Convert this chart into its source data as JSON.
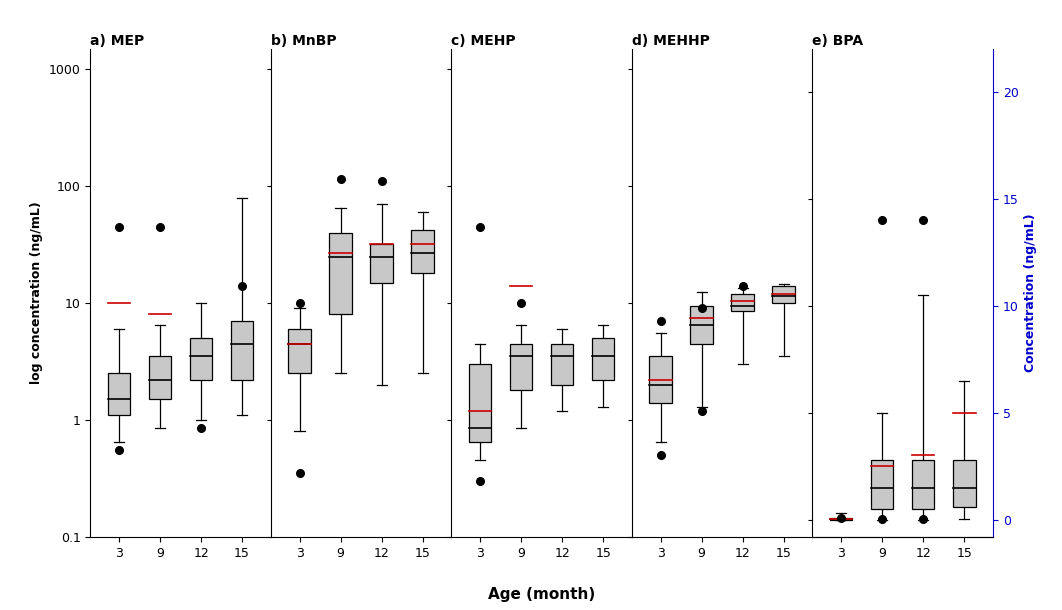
{
  "panels": [
    {
      "label": "a) MEP",
      "use_log": true,
      "ages": [
        3,
        9,
        12,
        15
      ],
      "whisker_low": [
        0.65,
        0.85,
        1.0,
        1.1
      ],
      "q1": [
        1.1,
        1.5,
        2.2,
        2.2
      ],
      "median": [
        1.5,
        2.2,
        3.5,
        4.5
      ],
      "q3": [
        2.5,
        3.5,
        5.0,
        7.0
      ],
      "whisker_high": [
        6.0,
        6.5,
        10.0,
        80.0
      ],
      "outliers_low": [
        0.55,
        null,
        0.85,
        null
      ],
      "outliers_high": [
        45.0,
        45.0,
        null,
        14.0
      ],
      "mean_line": [
        10.0,
        8.0,
        null,
        null
      ]
    },
    {
      "label": "b) MnBP",
      "use_log": true,
      "ages": [
        3,
        9,
        12,
        15
      ],
      "whisker_low": [
        0.8,
        2.5,
        2.0,
        2.5
      ],
      "q1": [
        2.5,
        8.0,
        15.0,
        18.0
      ],
      "median": [
        4.5,
        25.0,
        25.0,
        27.0
      ],
      "q3": [
        6.0,
        40.0,
        32.0,
        42.0
      ],
      "whisker_high": [
        9.0,
        65.0,
        70.0,
        60.0
      ],
      "outliers_low": [
        0.35,
        null,
        null,
        null
      ],
      "outliers_high": [
        10.0,
        115.0,
        110.0,
        null
      ],
      "mean_line": [
        4.5,
        27.0,
        32.0,
        32.0
      ]
    },
    {
      "label": "c) MEHP",
      "use_log": true,
      "ages": [
        3,
        9,
        12,
        15
      ],
      "whisker_low": [
        0.45,
        0.85,
        1.2,
        1.3
      ],
      "q1": [
        0.65,
        1.8,
        2.0,
        2.2
      ],
      "median": [
        0.85,
        3.5,
        3.5,
        3.5
      ],
      "q3": [
        3.0,
        4.5,
        4.5,
        5.0
      ],
      "whisker_high": [
        4.5,
        6.5,
        6.0,
        6.5
      ],
      "outliers_low": [
        0.3,
        null,
        null,
        null
      ],
      "outliers_high": [
        45.0,
        10.0,
        null,
        null
      ],
      "mean_line": [
        1.2,
        14.0,
        null,
        null
      ]
    },
    {
      "label": "d) MEHHP",
      "use_log": true,
      "ages": [
        3,
        9,
        12,
        15
      ],
      "whisker_low": [
        0.65,
        1.3,
        3.0,
        3.5
      ],
      "q1": [
        1.4,
        4.5,
        8.5,
        10.0
      ],
      "median": [
        2.0,
        6.5,
        9.5,
        11.5
      ],
      "q3": [
        3.5,
        9.5,
        12.0,
        14.0
      ],
      "whisker_high": [
        5.5,
        12.5,
        13.5,
        14.5
      ],
      "outliers_low": [
        0.5,
        1.2,
        null,
        null
      ],
      "outliers_high": [
        7.0,
        9.0,
        14.0,
        null
      ],
      "mean_line": [
        2.2,
        7.5,
        10.5,
        12.0
      ]
    },
    {
      "label": "e) BPA",
      "use_log": false,
      "ages": [
        3,
        9,
        12,
        15
      ],
      "whisker_low": [
        0.0,
        0.0,
        0.0,
        0.05
      ],
      "q1": [
        0.0,
        0.5,
        0.5,
        0.6
      ],
      "median": [
        0.05,
        1.5,
        1.5,
        1.5
      ],
      "q3": [
        0.1,
        2.8,
        2.8,
        2.8
      ],
      "whisker_high": [
        0.3,
        5.0,
        10.5,
        6.5
      ],
      "outliers_low": [
        0.1,
        0.05,
        0.05,
        null
      ],
      "outliers_high": [
        null,
        14.0,
        14.0,
        null
      ],
      "mean_line": [
        0.05,
        2.5,
        3.0,
        5.0
      ]
    }
  ],
  "box_color": "#c8c8c8",
  "box_edgecolor": "#000000",
  "median_color": "#000000",
  "mean_color": "#cc0000",
  "whisker_color": "#000000",
  "outlier_color": "#000000",
  "bg_color": "#ffffff",
  "xlabel": "Age (month)",
  "ylabel_left": "log concentration (ng/mL)",
  "ylabel_right": "Concentration (ng/mL)",
  "ylim_log": [
    0.1,
    1500
  ],
  "ylim_linear": [
    -0.8,
    22
  ],
  "yticks_log": [
    0.1,
    1,
    10,
    100,
    1000
  ],
  "ytick_labels_log": [
    "0.1",
    "1",
    "10",
    "100",
    "1000"
  ],
  "yticks_linear": [
    0,
    5,
    10,
    15,
    20
  ],
  "ytick_labels_linear": [
    "0",
    "5",
    "10",
    "15",
    "20"
  ]
}
